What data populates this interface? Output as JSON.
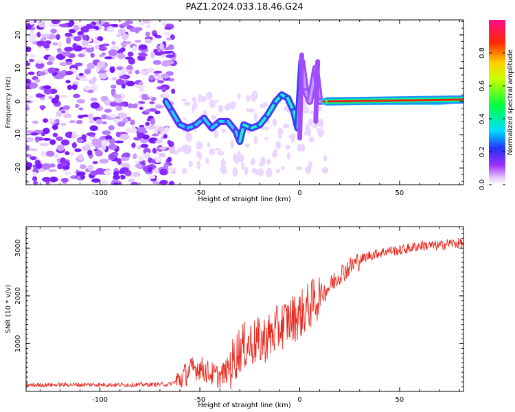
{
  "figure_title": "PAZ1.2024.033.18.46.G24",
  "colors": {
    "snr_line": "#e8281e",
    "axis": "#000000",
    "background": "#ffffff"
  },
  "chart_data": [
    {
      "type": "heatmap",
      "title": "",
      "xlabel": "Height of straight line (km)",
      "ylabel": "Frequency (Hz)",
      "xlim": [
        -137,
        82
      ],
      "ylim": [
        -25,
        24.5
      ],
      "x_ticks": [
        -100,
        -50,
        0,
        50
      ],
      "x_tick_labels": [
        "-100",
        "-50",
        "0",
        "50"
      ],
      "y_ticks": [
        -20,
        -10,
        0,
        10,
        20
      ],
      "y_tick_labels": [
        "-20",
        "-10",
        "0",
        "10",
        "20"
      ],
      "grid": false,
      "colorbar": {
        "label": "Normalized spectral amplitude",
        "range": [
          0,
          1
        ],
        "ticks": [
          0.0,
          0.2,
          0.4,
          0.6,
          0.8
        ],
        "tick_labels": [
          "0.0",
          "0.2",
          "0.4",
          "0.6",
          "0.8"
        ],
        "colormap": "rainbow (white-violet-blue-cyan-green-yellow-red-magenta)"
      },
      "ridge": {
        "description": "frequency of maximum spectral amplitude vs height",
        "x": [
          -67,
          -64,
          -60,
          -56,
          -52,
          -48,
          -44,
          -40,
          -36,
          -32,
          -30,
          -28,
          -24,
          -20,
          -16,
          -12,
          -9,
          -6,
          -3,
          -1,
          1,
          3,
          5,
          8,
          10,
          12,
          15,
          20,
          30,
          40,
          50,
          60,
          70,
          80
        ],
        "y": [
          0,
          -3,
          -7,
          -8,
          -7,
          -5,
          -8,
          -6,
          -6,
          -9,
          -12,
          -7,
          -8,
          -7,
          -4,
          0,
          2,
          1,
          -3,
          -8,
          12,
          3,
          0,
          10,
          0,
          0,
          0,
          0,
          0,
          0,
          0,
          0,
          0,
          0.5
        ]
      },
      "noise_region_x": [
        -137,
        -63
      ]
    },
    {
      "type": "line",
      "title": "",
      "xlabel": "Height of straight line (km)",
      "ylabel": "SNR (10 * v/v)",
      "xlim": [
        -137,
        82
      ],
      "ylim": [
        0,
        3450
      ],
      "x_ticks": [
        -100,
        -50,
        0,
        50
      ],
      "x_tick_labels": [
        "-100",
        "-50",
        "0",
        "50"
      ],
      "y_ticks": [
        1000,
        2000,
        3000
      ],
      "y_tick_labels": [
        "1000",
        "2000",
        "3000"
      ],
      "grid": false,
      "series": [
        {
          "name": "",
          "x": [
            -137,
            -120,
            -100,
            -80,
            -65,
            -60,
            -55,
            -50,
            -45,
            -40,
            -35,
            -30,
            -25,
            -20,
            -15,
            -10,
            -5,
            0,
            5,
            10,
            15,
            20,
            25,
            30,
            35,
            40,
            45,
            50,
            55,
            60,
            65,
            70,
            75,
            80
          ],
          "y": [
            130,
            140,
            140,
            140,
            150,
            250,
            450,
            500,
            380,
            300,
            500,
            900,
            1000,
            1050,
            1150,
            1350,
            1500,
            1600,
            1800,
            2000,
            2200,
            2450,
            2600,
            2750,
            2850,
            2900,
            2950,
            2950,
            3000,
            3050,
            3050,
            3050,
            3100,
            3100
          ]
        }
      ]
    }
  ]
}
